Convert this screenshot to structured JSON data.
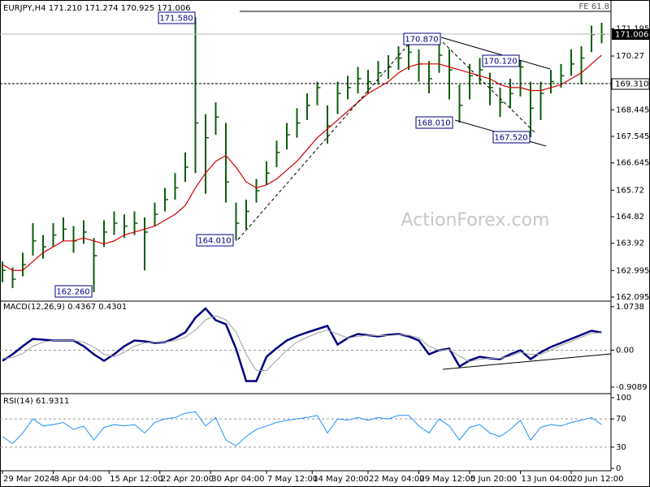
{
  "chart_data": [
    {
      "type": "ohlc",
      "title": "EURJPY,H4  171.210 171.274 170.925 171.006",
      "color": "#0b5e0b",
      "xlim": [
        -0.24,
        59.92
      ],
      "ylim": [
        161.985,
        172.06
      ],
      "yticks": [
        171.195,
        170.27,
        169.345,
        168.445,
        167.545,
        166.645,
        165.72,
        164.82,
        163.92,
        162.995,
        162.095
      ],
      "high": [
        163.3,
        163.1,
        163.6,
        164.6,
        164.2,
        164.6,
        164.8,
        164.5,
        164.7,
        164.1,
        164.7,
        165.0,
        164.9,
        165.0,
        164.8,
        165.3,
        165.8,
        166.3,
        167.0,
        171.58,
        168.3,
        168.7,
        168.0,
        165.3,
        165.4,
        166.1,
        166.7,
        167.4,
        168.0,
        168.5,
        169.0,
        169.4,
        168.6,
        169.4,
        169.6,
        169.9,
        169.8,
        170.1,
        170.3,
        170.6,
        170.87,
        170.5,
        170.1,
        170.7,
        170.5,
        169.3,
        170.0,
        170.2,
        169.7,
        169.2,
        169.5,
        170.12,
        169.4,
        169.4,
        169.8,
        170.0,
        170.5,
        170.6,
        171.3,
        171.4
      ],
      "low": [
        162.6,
        162.4,
        162.8,
        163.5,
        163.4,
        163.8,
        164.0,
        163.6,
        163.9,
        162.26,
        163.8,
        164.2,
        164.1,
        164.2,
        163.0,
        164.5,
        165.0,
        165.4,
        166.0,
        166.3,
        165.6,
        167.6,
        165.3,
        164.01,
        164.4,
        165.3,
        165.9,
        166.5,
        167.1,
        167.5,
        168.1,
        168.6,
        167.3,
        168.3,
        168.8,
        169.0,
        169.0,
        169.3,
        169.5,
        169.8,
        169.8,
        169.4,
        169.0,
        169.7,
        168.8,
        168.01,
        168.8,
        169.3,
        168.6,
        168.2,
        168.5,
        168.9,
        167.52,
        168.1,
        169.0,
        169.2,
        169.6,
        169.3,
        170.4,
        170.7
      ],
      "close": [
        163.0,
        162.7,
        163.2,
        164.0,
        163.8,
        164.2,
        164.4,
        164.0,
        164.3,
        163.5,
        164.3,
        164.6,
        164.5,
        164.6,
        164.3,
        164.9,
        165.4,
        165.8,
        166.5,
        168.0,
        167.5,
        168.2,
        166.0,
        164.6,
        165.0,
        165.7,
        166.3,
        167.0,
        167.6,
        168.0,
        168.6,
        169.2,
        167.9,
        169.0,
        169.2,
        169.5,
        169.4,
        169.7,
        169.9,
        170.2,
        170.4,
        170.0,
        169.5,
        170.3,
        169.8,
        168.6,
        169.6,
        169.8,
        169.2,
        168.7,
        169.0,
        169.9,
        168.5,
        169.0,
        169.4,
        169.6,
        170.0,
        170.2,
        171.0,
        171.006
      ],
      "ma": {
        "color": "#d00000",
        "values": [
          163.2,
          163.0,
          163.0,
          163.3,
          163.6,
          163.8,
          164.0,
          164.0,
          164.1,
          164.0,
          163.9,
          164.0,
          164.2,
          164.3,
          164.4,
          164.5,
          164.7,
          164.9,
          165.2,
          165.8,
          166.3,
          166.7,
          166.9,
          166.5,
          166.0,
          165.8,
          165.9,
          166.1,
          166.4,
          166.7,
          167.1,
          167.5,
          167.8,
          168.1,
          168.4,
          168.7,
          169.0,
          169.2,
          169.4,
          169.7,
          169.9,
          170.0,
          170.0,
          170.0,
          169.9,
          169.8,
          169.7,
          169.6,
          169.5,
          169.3,
          169.2,
          169.2,
          169.1,
          169.1,
          169.2,
          169.3,
          169.5,
          169.7,
          170.0,
          170.3
        ]
      },
      "annotations": [
        "171.580",
        "164.010",
        "162.260",
        "170.870",
        "168.010",
        "170.120",
        "167.520"
      ],
      "price_labels": [
        "171.006",
        "169.310"
      ],
      "level_label": "FE 61.8",
      "watermark": "ActionForex.com"
    },
    {
      "type": "line",
      "title": "MACD(12,26,9) 0.4367 0.4301",
      "xlim": [
        -0.24,
        59.92
      ],
      "ylim": [
        -1.03,
        1.19
      ],
      "yticks": [
        1.0738,
        {
          "value": 0,
          "label": "0.00"
        },
        -0.9089
      ],
      "levels": [
        0
      ],
      "series": [
        {
          "color": "#00007f",
          "width": 2.5,
          "values": [
            -0.26,
            -0.1,
            0.1,
            0.28,
            0.26,
            0.24,
            0.24,
            0.24,
            0.1,
            -0.1,
            -0.26,
            -0.1,
            0.1,
            0.24,
            0.22,
            0.18,
            0.2,
            0.3,
            0.44,
            0.8,
            1.03,
            0.74,
            0.64,
            0.04,
            -0.76,
            -0.76,
            -0.16,
            0.05,
            0.24,
            0.35,
            0.44,
            0.52,
            0.6,
            0.14,
            0.3,
            0.4,
            0.37,
            0.34,
            0.38,
            0.4,
            0.34,
            0.24,
            -0.1,
            0.0,
            0.04,
            -0.4,
            -0.25,
            -0.16,
            -0.2,
            -0.22,
            -0.1,
            0.0,
            -0.22,
            -0.05,
            0.08,
            0.18,
            0.28,
            0.38,
            0.48,
            0.4367
          ]
        },
        {
          "color": "#a0a0a0",
          "width": 1,
          "values": [
            -0.2,
            -0.18,
            -0.08,
            0.1,
            0.2,
            0.24,
            0.24,
            0.24,
            0.2,
            0.08,
            -0.1,
            -0.16,
            -0.05,
            0.1,
            0.18,
            0.2,
            0.2,
            0.24,
            0.32,
            0.5,
            0.75,
            0.85,
            0.75,
            0.45,
            -0.1,
            -0.5,
            -0.5,
            -0.25,
            0.0,
            0.2,
            0.32,
            0.42,
            0.5,
            0.4,
            0.3,
            0.34,
            0.37,
            0.36,
            0.36,
            0.38,
            0.37,
            0.3,
            0.1,
            0.0,
            0.02,
            -0.15,
            -0.28,
            -0.22,
            -0.2,
            -0.2,
            -0.15,
            -0.05,
            -0.1,
            -0.1,
            0.0,
            0.12,
            0.22,
            0.32,
            0.42,
            0.4301
          ]
        }
      ]
    },
    {
      "type": "line",
      "title": "RSI(14) 61.9311",
      "xlim": [
        -0.24,
        59.92
      ],
      "ylim": [
        0,
        100
      ],
      "yticks": [
        100,
        70,
        30,
        0
      ],
      "levels": [
        70,
        30
      ],
      "xticks": [
        {
          "value": 0,
          "label": "29 Mar 2024"
        },
        {
          "value": 5,
          "label": "8 Apr 04:00"
        },
        {
          "value": 10.5,
          "label": "15 Apr 12:00"
        },
        {
          "value": 15.5,
          "label": "22 Apr 20:00"
        },
        {
          "value": 20.5,
          "label": "30 Apr 04:00"
        },
        {
          "value": 26,
          "label": "7 May 12:00"
        },
        {
          "value": 30.5,
          "label": "14 May 20:00"
        },
        {
          "value": 36,
          "label": "22 May 04:00"
        },
        {
          "value": 41,
          "label": "29 May 12:00"
        },
        {
          "value": 46,
          "label": "5 Jun 20:00"
        },
        {
          "value": 51,
          "label": "13 Jun 04:00"
        },
        {
          "value": 56,
          "label": "20 Jun 12:00"
        }
      ],
      "series": [
        {
          "color": "#1e90ff",
          "width": 1,
          "values": [
            45,
            35,
            50,
            70,
            60,
            62,
            65,
            55,
            60,
            40,
            58,
            62,
            60,
            62,
            50,
            65,
            70,
            72,
            78,
            80,
            60,
            72,
            40,
            32,
            45,
            55,
            60,
            65,
            68,
            70,
            72,
            75,
            50,
            70,
            68,
            72,
            68,
            72,
            70,
            75,
            75,
            60,
            50,
            70,
            60,
            40,
            58,
            62,
            50,
            45,
            55,
            68,
            40,
            58,
            62,
            60,
            65,
            68,
            72,
            61.9311
          ]
        }
      ]
    }
  ]
}
